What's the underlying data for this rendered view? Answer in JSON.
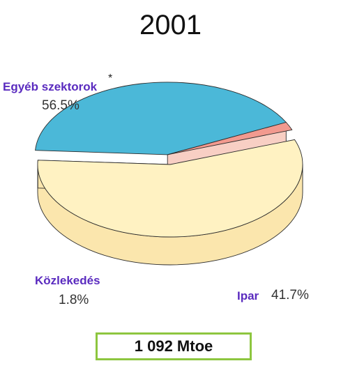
{
  "chart_data": {
    "type": "pie",
    "title": "2001",
    "slices": [
      {
        "label": "Egyéb szektorok",
        "label_mark": "*",
        "value": 56.5,
        "value_text": "56.5%",
        "color": "#fff2c2",
        "side_color": "#fbe6ad",
        "exploded": false
      },
      {
        "label": "Ipar",
        "value": 41.7,
        "value_text": "41.7%",
        "color": "#4bb8d8",
        "side_color": "#bfe3f1",
        "exploded": true
      },
      {
        "label": "Közlekedés",
        "value": 1.8,
        "value_text": "1.8%",
        "color": "#f29a8f",
        "side_color": "#f8cfc4",
        "exploded": true
      }
    ],
    "label_color": "#5a2bbf",
    "total": "1 092 Mtoe",
    "total_border_color": "#8dc63f"
  }
}
